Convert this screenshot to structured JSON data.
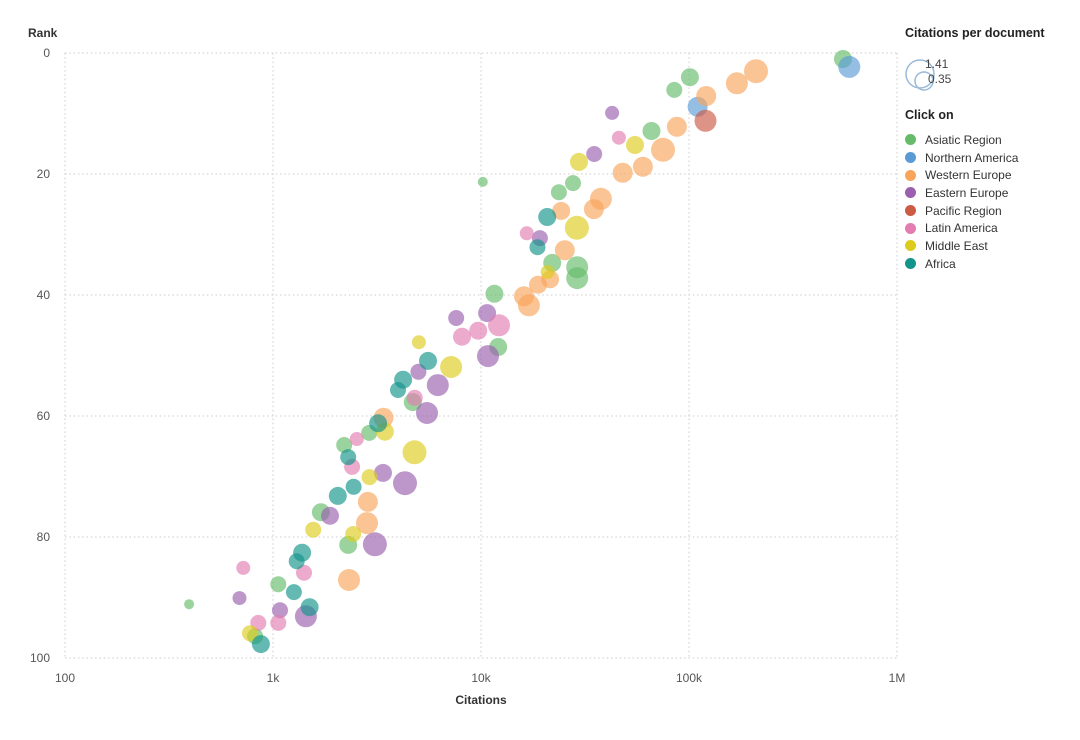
{
  "axes": {
    "x": {
      "title": "Citations",
      "scale": "log",
      "ticks": [
        {
          "value": 100,
          "label": "100"
        },
        {
          "value": 1000,
          "label": "1k"
        },
        {
          "value": 10000,
          "label": "10k"
        },
        {
          "value": 100000,
          "label": "100k"
        },
        {
          "value": 1000000,
          "label": "1M"
        }
      ]
    },
    "y": {
      "title": "Rank",
      "inverted": true,
      "ticks": [
        {
          "value": 0,
          "label": "0"
        },
        {
          "value": 20,
          "label": "20"
        },
        {
          "value": 40,
          "label": "40"
        },
        {
          "value": 60,
          "label": "60"
        },
        {
          "value": 80,
          "label": "80"
        },
        {
          "value": 100,
          "label": "100"
        }
      ]
    }
  },
  "size_legend": {
    "title": "Citations per document",
    "stroke_color": "#9bb8d8",
    "circles": [
      {
        "label": "1.41",
        "r": 14
      },
      {
        "label": "0.35",
        "r": 9
      }
    ]
  },
  "legend": {
    "title": "Click on",
    "items": [
      {
        "key": "asiatic-region",
        "label": "Asiatic Region",
        "color": "#66bb6a"
      },
      {
        "key": "northern-america",
        "label": "Northern America",
        "color": "#5b9bd5"
      },
      {
        "key": "western-europe",
        "label": "Western Europe",
        "color": "#f9a45b"
      },
      {
        "key": "eastern-europe",
        "label": "Eastern Europe",
        "color": "#9a5fae"
      },
      {
        "key": "pacific-region",
        "label": "Pacific Region",
        "color": "#cb5b45"
      },
      {
        "key": "latin-america",
        "label": "Latin America",
        "color": "#e27cb1"
      },
      {
        "key": "middle-east",
        "label": "Middle East",
        "color": "#ddcc1c"
      },
      {
        "key": "africa",
        "label": "Africa",
        "color": "#12948a"
      }
    ]
  },
  "chart_data": {
    "type": "scatter",
    "title": "",
    "xlabel": "Citations",
    "ylabel": "Rank",
    "x_scale": "log",
    "xlim": [
      100,
      1000000
    ],
    "ylim": [
      0,
      100
    ],
    "y_inverted": true,
    "grid": true,
    "legend_position": "right",
    "bubble_opacity": 0.65,
    "size_encoding": {
      "variable": "Citations per document",
      "max_value": 1.41,
      "min_value": 0.35
    },
    "series": [
      {
        "name": "Asiatic Region",
        "key": "asiatic-region",
        "color": "#66bb6a",
        "points": [
          {
            "citations": 550000,
            "rank": 1.0,
            "r": 9
          },
          {
            "citations": 101000,
            "rank": 4.0,
            "r": 9
          },
          {
            "citations": 85000,
            "rank": 6.1,
            "r": 8
          },
          {
            "citations": 66000,
            "rank": 12.9,
            "r": 9
          },
          {
            "citations": 10200,
            "rank": 21.3,
            "r": 5
          },
          {
            "citations": 27700,
            "rank": 21.5,
            "r": 8
          },
          {
            "citations": 23700,
            "rank": 23.0,
            "r": 8
          },
          {
            "citations": 22000,
            "rank": 34.7,
            "r": 9
          },
          {
            "citations": 29000,
            "rank": 35.4,
            "r": 11
          },
          {
            "citations": 29000,
            "rank": 37.2,
            "r": 11
          },
          {
            "citations": 11600,
            "rank": 39.8,
            "r": 9
          },
          {
            "citations": 12100,
            "rank": 48.6,
            "r": 9
          },
          {
            "citations": 4700,
            "rank": 57.7,
            "r": 9
          },
          {
            "citations": 2900,
            "rank": 62.8,
            "r": 8
          },
          {
            "citations": 2200,
            "rank": 64.8,
            "r": 8
          },
          {
            "citations": 1700,
            "rank": 75.9,
            "r": 9
          },
          {
            "citations": 2300,
            "rank": 81.3,
            "r": 9
          },
          {
            "citations": 1060,
            "rank": 87.8,
            "r": 8
          },
          {
            "citations": 395,
            "rank": 91.1,
            "r": 5
          },
          {
            "citations": 820,
            "rank": 96.4,
            "r": 8
          }
        ]
      },
      {
        "name": "Northern America",
        "key": "northern-america",
        "color": "#5b9bd5",
        "points": [
          {
            "citations": 590000,
            "rank": 2.3,
            "r": 11
          },
          {
            "citations": 110000,
            "rank": 8.9,
            "r": 10
          }
        ]
      },
      {
        "name": "Western Europe",
        "key": "western-europe",
        "color": "#f9a45b",
        "points": [
          {
            "citations": 210000,
            "rank": 3.0,
            "r": 12
          },
          {
            "citations": 170000,
            "rank": 5.0,
            "r": 11
          },
          {
            "citations": 121000,
            "rank": 7.1,
            "r": 10
          },
          {
            "citations": 87500,
            "rank": 12.2,
            "r": 10
          },
          {
            "citations": 75000,
            "rank": 16.0,
            "r": 12
          },
          {
            "citations": 60000,
            "rank": 18.8,
            "r": 10
          },
          {
            "citations": 48000,
            "rank": 19.8,
            "r": 10
          },
          {
            "citations": 37700,
            "rank": 24.1,
            "r": 11
          },
          {
            "citations": 34900,
            "rank": 25.8,
            "r": 10
          },
          {
            "citations": 24300,
            "rank": 26.1,
            "r": 9
          },
          {
            "citations": 25300,
            "rank": 32.6,
            "r": 10
          },
          {
            "citations": 21500,
            "rank": 37.4,
            "r": 9
          },
          {
            "citations": 18800,
            "rank": 38.3,
            "r": 9
          },
          {
            "citations": 16100,
            "rank": 40.2,
            "r": 10
          },
          {
            "citations": 17000,
            "rank": 41.7,
            "r": 11
          },
          {
            "citations": 3400,
            "rank": 60.3,
            "r": 10
          },
          {
            "citations": 2860,
            "rank": 74.2,
            "r": 10
          },
          {
            "citations": 2830,
            "rank": 77.7,
            "r": 11
          },
          {
            "citations": 2320,
            "rank": 87.1,
            "r": 11
          }
        ]
      },
      {
        "name": "Eastern Europe",
        "key": "eastern-europe",
        "color": "#9a5fae",
        "points": [
          {
            "citations": 42700,
            "rank": 9.9,
            "r": 7
          },
          {
            "citations": 35000,
            "rank": 16.7,
            "r": 8
          },
          {
            "citations": 19200,
            "rank": 30.6,
            "r": 8
          },
          {
            "citations": 10700,
            "rank": 43.0,
            "r": 9
          },
          {
            "citations": 7600,
            "rank": 43.8,
            "r": 8
          },
          {
            "citations": 10800,
            "rank": 50.1,
            "r": 11
          },
          {
            "citations": 5000,
            "rank": 52.7,
            "r": 8
          },
          {
            "citations": 6200,
            "rank": 54.9,
            "r": 11
          },
          {
            "citations": 5500,
            "rank": 59.5,
            "r": 11
          },
          {
            "citations": 3380,
            "rank": 69.4,
            "r": 9
          },
          {
            "citations": 4310,
            "rank": 71.1,
            "r": 12
          },
          {
            "citations": 1880,
            "rank": 76.5,
            "r": 9
          },
          {
            "citations": 3090,
            "rank": 81.2,
            "r": 12
          },
          {
            "citations": 690,
            "rank": 90.1,
            "r": 7
          },
          {
            "citations": 1080,
            "rank": 92.1,
            "r": 8
          },
          {
            "citations": 1440,
            "rank": 93.1,
            "r": 11
          }
        ]
      },
      {
        "name": "Pacific Region",
        "key": "pacific-region",
        "color": "#cb5b45",
        "points": [
          {
            "citations": 120000,
            "rank": 11.2,
            "r": 11
          }
        ]
      },
      {
        "name": "Latin America",
        "key": "latin-america",
        "color": "#e27cb1",
        "points": [
          {
            "citations": 46000,
            "rank": 14.0,
            "r": 7
          },
          {
            "citations": 16600,
            "rank": 29.8,
            "r": 7
          },
          {
            "citations": 12200,
            "rank": 45.0,
            "r": 11
          },
          {
            "citations": 9700,
            "rank": 45.9,
            "r": 9
          },
          {
            "citations": 8100,
            "rank": 46.9,
            "r": 9
          },
          {
            "citations": 4800,
            "rank": 57.0,
            "r": 8
          },
          {
            "citations": 2530,
            "rank": 63.8,
            "r": 7
          },
          {
            "citations": 2400,
            "rank": 68.4,
            "r": 8
          },
          {
            "citations": 720,
            "rank": 85.1,
            "r": 7
          },
          {
            "citations": 1410,
            "rank": 85.9,
            "r": 8
          },
          {
            "citations": 850,
            "rank": 94.2,
            "r": 8
          },
          {
            "citations": 1060,
            "rank": 94.2,
            "r": 8
          }
        ]
      },
      {
        "name": "Middle East",
        "key": "middle-east",
        "color": "#ddcc1c",
        "points": [
          {
            "citations": 55000,
            "rank": 15.2,
            "r": 9
          },
          {
            "citations": 29600,
            "rank": 18.0,
            "r": 9
          },
          {
            "citations": 28900,
            "rank": 28.9,
            "r": 12
          },
          {
            "citations": 20900,
            "rank": 36.2,
            "r": 7
          },
          {
            "citations": 5030,
            "rank": 47.8,
            "r": 7
          },
          {
            "citations": 7180,
            "rank": 51.9,
            "r": 11
          },
          {
            "citations": 3450,
            "rank": 62.6,
            "r": 9
          },
          {
            "citations": 4790,
            "rank": 66.0,
            "r": 12
          },
          {
            "citations": 2910,
            "rank": 70.1,
            "r": 8
          },
          {
            "citations": 1560,
            "rank": 78.8,
            "r": 8
          },
          {
            "citations": 2430,
            "rank": 79.5,
            "r": 8
          },
          {
            "citations": 775,
            "rank": 95.9,
            "r": 8
          }
        ]
      },
      {
        "name": "Africa",
        "key": "africa",
        "color": "#12948a",
        "points": [
          {
            "citations": 20800,
            "rank": 27.1,
            "r": 9
          },
          {
            "citations": 18700,
            "rank": 32.1,
            "r": 8
          },
          {
            "citations": 5560,
            "rank": 50.9,
            "r": 9
          },
          {
            "citations": 4220,
            "rank": 54.0,
            "r": 9
          },
          {
            "citations": 3990,
            "rank": 55.7,
            "r": 8
          },
          {
            "citations": 3200,
            "rank": 61.2,
            "r": 9
          },
          {
            "citations": 2300,
            "rank": 66.8,
            "r": 8
          },
          {
            "citations": 2440,
            "rank": 71.7,
            "r": 8
          },
          {
            "citations": 2050,
            "rank": 73.2,
            "r": 9
          },
          {
            "citations": 1380,
            "rank": 82.6,
            "r": 9
          },
          {
            "citations": 1300,
            "rank": 84.0,
            "r": 8
          },
          {
            "citations": 1260,
            "rank": 89.1,
            "r": 8
          },
          {
            "citations": 1500,
            "rank": 91.6,
            "r": 9
          },
          {
            "citations": 875,
            "rank": 97.7,
            "r": 9
          }
        ]
      }
    ]
  }
}
